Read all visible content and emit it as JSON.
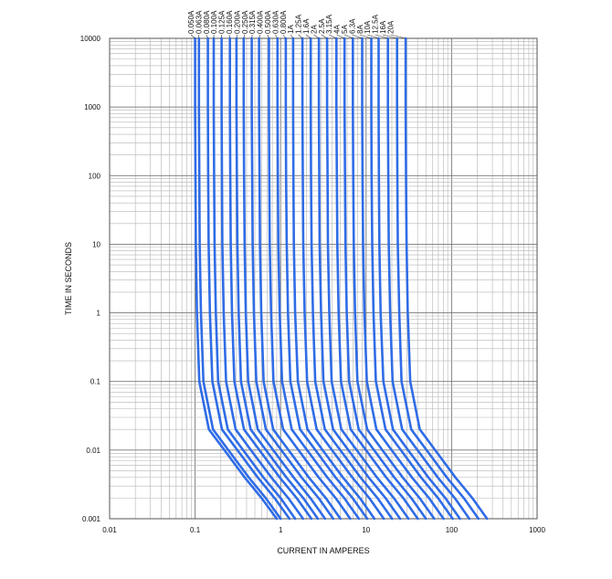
{
  "chart_data": {
    "type": "line",
    "title": "",
    "xlabel": "CURRENT IN AMPERES",
    "ylabel": "TIME IN SECONDS",
    "x_scale": "log",
    "y_scale": "log",
    "xlim": [
      0.01,
      1000
    ],
    "ylim": [
      0.001,
      10000
    ],
    "x_ticks": [
      "0.01",
      "0.1",
      "1",
      "10",
      "100",
      "1000"
    ],
    "y_ticks": [
      "0.001",
      "0.01",
      "0.1",
      "1",
      "10",
      "100",
      "1000",
      "10000"
    ],
    "grid": true,
    "series_color": "#2f6ce6",
    "series": [
      {
        "name": "0.050A",
        "x": [
          0.1,
          0.1,
          0.101,
          0.102,
          0.105,
          0.112,
          0.145,
          0.22,
          0.38,
          0.6,
          0.9
        ],
        "y": [
          10000,
          1000,
          100,
          10,
          1,
          0.1,
          0.02,
          0.01,
          0.004,
          0.002,
          0.001
        ]
      },
      {
        "name": "0.063A",
        "x": [
          0.111,
          0.111,
          0.112,
          0.113,
          0.117,
          0.125,
          0.162,
          0.245,
          0.425,
          0.67,
          1.0
        ],
        "y": [
          10000,
          1000,
          100,
          10,
          1,
          0.1,
          0.02,
          0.01,
          0.004,
          0.002,
          0.001
        ]
      },
      {
        "name": "0.080A",
        "x": [
          0.141,
          0.141,
          0.142,
          0.144,
          0.149,
          0.159,
          0.206,
          0.312,
          0.54,
          0.85,
          1.27
        ],
        "y": [
          10000,
          1000,
          100,
          10,
          1,
          0.1,
          0.02,
          0.01,
          0.004,
          0.002,
          0.001
        ]
      },
      {
        "name": "0.100A",
        "x": [
          0.165,
          0.165,
          0.167,
          0.169,
          0.175,
          0.186,
          0.241,
          0.365,
          0.63,
          1.0,
          1.48
        ],
        "y": [
          10000,
          1000,
          100,
          10,
          1,
          0.1,
          0.02,
          0.01,
          0.004,
          0.002,
          0.001
        ]
      },
      {
        "name": "0.125A",
        "x": [
          0.204,
          0.204,
          0.206,
          0.208,
          0.216,
          0.23,
          0.298,
          0.45,
          0.78,
          1.23,
          1.83
        ],
        "y": [
          10000,
          1000,
          100,
          10,
          1,
          0.1,
          0.02,
          0.01,
          0.004,
          0.002,
          0.001
        ]
      },
      {
        "name": "0.160A",
        "x": [
          0.255,
          0.255,
          0.258,
          0.261,
          0.27,
          0.288,
          0.373,
          0.565,
          0.975,
          1.54,
          2.29
        ],
        "y": [
          10000,
          1000,
          100,
          10,
          1,
          0.1,
          0.02,
          0.01,
          0.004,
          0.002,
          0.001
        ]
      },
      {
        "name": "0.200A",
        "x": [
          0.305,
          0.305,
          0.308,
          0.312,
          0.323,
          0.344,
          0.446,
          0.675,
          1.17,
          1.84,
          2.73
        ],
        "y": [
          10000,
          1000,
          100,
          10,
          1,
          0.1,
          0.02,
          0.01,
          0.004,
          0.002,
          0.001
        ]
      },
      {
        "name": "0.250A",
        "x": [
          0.37,
          0.37,
          0.374,
          0.379,
          0.392,
          0.418,
          0.541,
          0.82,
          1.42,
          2.23,
          3.31
        ],
        "y": [
          10000,
          1000,
          100,
          10,
          1,
          0.1,
          0.02,
          0.01,
          0.004,
          0.002,
          0.001
        ]
      },
      {
        "name": "0.315A",
        "x": [
          0.46,
          0.46,
          0.465,
          0.471,
          0.488,
          0.52,
          0.673,
          1.02,
          1.76,
          2.78,
          4.12
        ],
        "y": [
          10000,
          1000,
          100,
          10,
          1,
          0.1,
          0.02,
          0.01,
          0.004,
          0.002,
          0.001
        ]
      },
      {
        "name": "0.400A",
        "x": [
          0.56,
          0.56,
          0.566,
          0.573,
          0.594,
          0.633,
          0.82,
          1.24,
          2.14,
          3.38,
          5.01
        ],
        "y": [
          10000,
          1000,
          100,
          10,
          1,
          0.1,
          0.02,
          0.01,
          0.004,
          0.002,
          0.001
        ]
      },
      {
        "name": "0.500A",
        "x": [
          0.73,
          0.73,
          0.737,
          0.747,
          0.774,
          0.825,
          1.07,
          1.62,
          2.79,
          4.41,
          6.53
        ],
        "y": [
          10000,
          1000,
          100,
          10,
          1,
          0.1,
          0.02,
          0.01,
          0.004,
          0.002,
          0.001
        ]
      },
      {
        "name": "0.630A",
        "x": [
          0.92,
          0.92,
          0.929,
          0.941,
          0.975,
          1.04,
          1.35,
          2.04,
          3.52,
          5.56,
          8.24
        ],
        "y": [
          10000,
          1000,
          100,
          10,
          1,
          0.1,
          0.02,
          0.01,
          0.004,
          0.002,
          0.001
        ]
      },
      {
        "name": "0.800A",
        "x": [
          1.15,
          1.15,
          1.16,
          1.18,
          1.22,
          1.3,
          1.69,
          2.55,
          4.4,
          6.95,
          10.3
        ],
        "y": [
          10000,
          1000,
          100,
          10,
          1,
          0.1,
          0.02,
          0.01,
          0.004,
          0.002,
          0.001
        ]
      },
      {
        "name": "1A",
        "x": [
          1.4,
          1.4,
          1.41,
          1.43,
          1.48,
          1.59,
          2.06,
          3.1,
          5.36,
          8.46,
          12.5
        ],
        "y": [
          10000,
          1000,
          100,
          10,
          1,
          0.1,
          0.02,
          0.01,
          0.004,
          0.002,
          0.001
        ]
      },
      {
        "name": "1.25A",
        "x": [
          1.8,
          1.8,
          1.82,
          1.84,
          1.91,
          2.04,
          2.64,
          3.99,
          6.89,
          10.9,
          16.1
        ],
        "y": [
          10000,
          1000,
          100,
          10,
          1,
          0.1,
          0.02,
          0.01,
          0.004,
          0.002,
          0.001
        ]
      },
      {
        "name": "1.6A",
        "x": [
          2.25,
          2.25,
          2.27,
          2.3,
          2.39,
          2.54,
          3.3,
          4.99,
          8.61,
          13.6,
          20.1
        ],
        "y": [
          10000,
          1000,
          100,
          10,
          1,
          0.1,
          0.02,
          0.01,
          0.004,
          0.002,
          0.001
        ]
      },
      {
        "name": "2A",
        "x": [
          2.8,
          2.8,
          2.83,
          2.86,
          2.97,
          3.17,
          4.11,
          6.21,
          10.7,
          16.9,
          25.0
        ],
        "y": [
          10000,
          1000,
          100,
          10,
          1,
          0.1,
          0.02,
          0.01,
          0.004,
          0.002,
          0.001
        ]
      },
      {
        "name": "2.5A",
        "x": [
          3.5,
          3.5,
          3.54,
          3.58,
          3.71,
          3.96,
          5.13,
          7.76,
          13.4,
          21.1,
          31.3
        ],
        "y": [
          10000,
          1000,
          100,
          10,
          1,
          0.1,
          0.02,
          0.01,
          0.004,
          0.002,
          0.001
        ]
      },
      {
        "name": "3.15A",
        "x": [
          4.5,
          4.5,
          4.55,
          4.61,
          4.77,
          5.09,
          6.6,
          9.98,
          17.2,
          27.2,
          40.2
        ],
        "y": [
          10000,
          1000,
          100,
          10,
          1,
          0.1,
          0.02,
          0.01,
          0.004,
          0.002,
          0.001
        ]
      },
      {
        "name": "4A",
        "x": [
          5.6,
          5.6,
          5.66,
          5.73,
          5.94,
          6.33,
          8.2,
          12.4,
          21.4,
          33.8,
          50.1
        ],
        "y": [
          10000,
          1000,
          100,
          10,
          1,
          0.1,
          0.02,
          0.01,
          0.004,
          0.002,
          0.001
        ]
      },
      {
        "name": "5A",
        "x": [
          7.0,
          7.0,
          7.07,
          7.17,
          7.42,
          7.91,
          10.3,
          15.5,
          26.8,
          42.3,
          62.6
        ],
        "y": [
          10000,
          1000,
          100,
          10,
          1,
          0.1,
          0.02,
          0.01,
          0.004,
          0.002,
          0.001
        ]
      },
      {
        "name": "6.3A",
        "x": [
          9.0,
          9.0,
          9.09,
          9.21,
          9.54,
          10.2,
          13.2,
          19.9,
          34.4,
          54.4,
          80.5
        ],
        "y": [
          10000,
          1000,
          100,
          10,
          1,
          0.1,
          0.02,
          0.01,
          0.004,
          0.002,
          0.001
        ]
      },
      {
        "name": "8A",
        "x": [
          11.5,
          11.5,
          11.6,
          11.8,
          12.2,
          13.0,
          16.9,
          25.5,
          44.0,
          69.5,
          103.0
        ],
        "y": [
          10000,
          1000,
          100,
          10,
          1,
          0.1,
          0.02,
          0.01,
          0.004,
          0.002,
          0.001
        ]
      },
      {
        "name": "10A",
        "x": [
          14.0,
          14.0,
          14.1,
          14.3,
          14.8,
          15.9,
          20.6,
          31.0,
          53.6,
          84.6,
          125.0
        ],
        "y": [
          10000,
          1000,
          100,
          10,
          1,
          0.1,
          0.02,
          0.01,
          0.004,
          0.002,
          0.001
        ]
      },
      {
        "name": "12.5A",
        "x": [
          18.0,
          18.0,
          18.2,
          18.4,
          19.1,
          20.4,
          26.4,
          39.9,
          68.9,
          109.0,
          161.0
        ],
        "y": [
          10000,
          1000,
          100,
          10,
          1,
          0.1,
          0.02,
          0.01,
          0.004,
          0.002,
          0.001
        ]
      },
      {
        "name": "16A",
        "x": [
          23.0,
          23.0,
          23.2,
          23.5,
          24.4,
          26.0,
          33.7,
          51.0,
          88.0,
          139.0,
          206.0
        ],
        "y": [
          10000,
          1000,
          100,
          10,
          1,
          0.1,
          0.02,
          0.01,
          0.004,
          0.002,
          0.001
        ]
      },
      {
        "name": "20A",
        "x": [
          29.0,
          29.0,
          29.3,
          29.7,
          30.7,
          32.8,
          42.5,
          64.3,
          111.0,
          175.0,
          260.0
        ],
        "y": [
          10000,
          1000,
          100,
          10,
          1,
          0.1,
          0.02,
          0.01,
          0.004,
          0.002,
          0.001
        ]
      }
    ]
  }
}
